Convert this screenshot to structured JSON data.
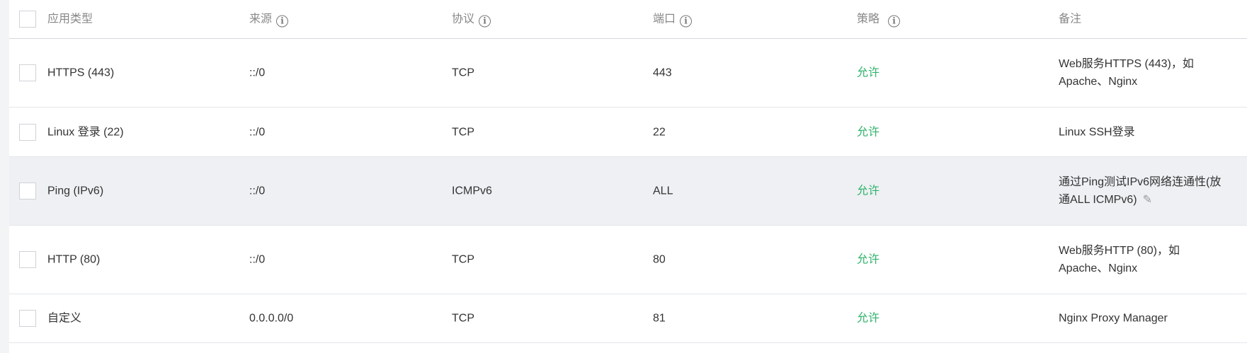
{
  "headers": [
    {
      "label": "应用类型",
      "info": false
    },
    {
      "label": "来源",
      "info": true
    },
    {
      "label": "协议",
      "info": true
    },
    {
      "label": "端口",
      "info": true
    },
    {
      "label": "策略",
      "info": true
    },
    {
      "label": "备注",
      "info": false
    }
  ],
  "rows": [
    {
      "type": "HTTPS (443)",
      "source": "::/0",
      "protocol": "TCP",
      "port": "443",
      "policy": "允许",
      "note": "Web服务HTTPS (443)，如Apache、Nginx"
    },
    {
      "type": "Linux 登录 (22)",
      "source": "::/0",
      "protocol": "TCP",
      "port": "22",
      "policy": "允许",
      "note": "Linux SSH登录"
    },
    {
      "type": "Ping (IPv6)",
      "source": "::/0",
      "protocol": "ICMPv6",
      "port": "ALL",
      "policy": "允许",
      "note": "通过Ping测试IPv6网络连通性(放通ALL ICMPv6)",
      "hovered": true
    },
    {
      "type": "HTTP (80)",
      "source": "::/0",
      "protocol": "TCP",
      "port": "80",
      "policy": "允许",
      "note": "Web服务HTTP (80)，如Apache、Nginx"
    },
    {
      "type": "自定义",
      "source": "0.0.0.0/0",
      "protocol": "TCP",
      "port": "81",
      "policy": "允许",
      "note": "Nginx Proxy Manager"
    }
  ],
  "colors": {
    "allow": "#2fb36a",
    "hover_row": "#eef0f3"
  },
  "icons": {
    "info": "info-circle-icon",
    "edit": "pencil-icon"
  }
}
